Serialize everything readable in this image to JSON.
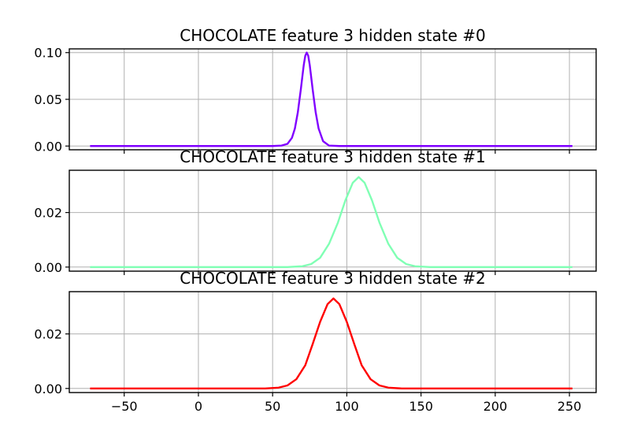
{
  "chart_data": [
    {
      "type": "line",
      "title": "CHOCOLATE feature 3 hidden state #0",
      "xlabel": "",
      "ylabel": "",
      "xlim": [
        -87,
        268
      ],
      "ylim": [
        -0.004,
        0.104
      ],
      "xticks": [
        -50,
        0,
        50,
        100,
        150,
        200,
        250
      ],
      "xtick_labels_visible": false,
      "yticks": [
        0.0,
        0.05,
        0.1
      ],
      "ytick_labels": [
        "0.00",
        "0.05",
        "0.10"
      ],
      "grid": true,
      "series": [
        {
          "color": "#8000ff",
          "x": [
            -73,
            50,
            56,
            60,
            63,
            65,
            67,
            69,
            70,
            71,
            72,
            73,
            74,
            75,
            77,
            79,
            81,
            84,
            88,
            95,
            252
          ],
          "y": [
            0.0,
            0.0,
            0.0005,
            0.0023,
            0.0087,
            0.0187,
            0.0362,
            0.0605,
            0.0738,
            0.0869,
            0.0966,
            0.1,
            0.0966,
            0.0869,
            0.0605,
            0.0362,
            0.0187,
            0.0052,
            0.0005,
            0.0,
            0.0
          ]
        }
      ]
    },
    {
      "type": "line",
      "title": "CHOCOLATE feature 3 hidden state #1",
      "xlabel": "",
      "ylabel": "",
      "xlim": [
        -87,
        268
      ],
      "ylim": [
        -0.0015,
        0.0355
      ],
      "xticks": [
        -50,
        0,
        50,
        100,
        150,
        200,
        250
      ],
      "xtick_labels_visible": false,
      "yticks": [
        0.0,
        0.02
      ],
      "ytick_labels": [
        "0.00",
        "0.02"
      ],
      "grid": true,
      "series": [
        {
          "color": "#80ffb4",
          "x": [
            -73,
            60,
            70,
            76,
            82,
            88,
            94,
            99,
            104,
            108,
            112,
            117,
            122,
            128,
            134,
            140,
            146,
            156,
            252
          ],
          "y": [
            0.0,
            0.0,
            0.0003,
            0.0011,
            0.0034,
            0.0085,
            0.0163,
            0.0244,
            0.0309,
            0.033,
            0.0309,
            0.0244,
            0.0163,
            0.0085,
            0.0034,
            0.0011,
            0.0003,
            0.0,
            0.0
          ]
        }
      ]
    },
    {
      "type": "line",
      "title": "CHOCOLATE feature 3 hidden state #2",
      "xlabel": "",
      "ylabel": "",
      "xlim": [
        -87,
        268
      ],
      "ylim": [
        -0.0015,
        0.0355
      ],
      "xticks": [
        -50,
        0,
        50,
        100,
        150,
        200,
        250
      ],
      "xtick_labels": [
        "−50",
        "0",
        "50",
        "100",
        "150",
        "200",
        "250"
      ],
      "xtick_labels_visible": true,
      "yticks": [
        0.0,
        0.02
      ],
      "ytick_labels": [
        "0.00",
        "0.02"
      ],
      "grid": true,
      "series": [
        {
          "color": "#ff0000",
          "x": [
            -73,
            45,
            54,
            60,
            66,
            72,
            77,
            82,
            87,
            91,
            95,
            100,
            105,
            110,
            116,
            122,
            128,
            137,
            252
          ],
          "y": [
            0.0,
            0.0,
            0.0003,
            0.0011,
            0.0034,
            0.0085,
            0.0163,
            0.0244,
            0.0309,
            0.033,
            0.0309,
            0.0244,
            0.0163,
            0.0085,
            0.0034,
            0.0011,
            0.0003,
            0.0,
            0.0
          ]
        }
      ]
    }
  ]
}
